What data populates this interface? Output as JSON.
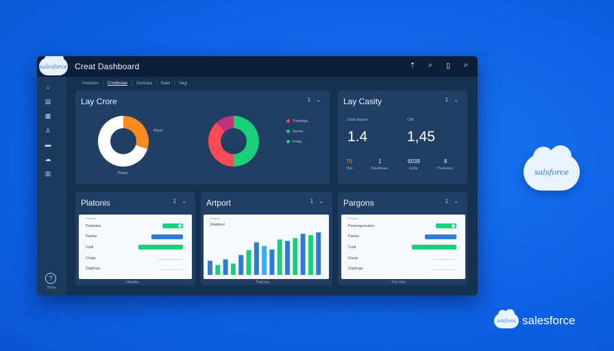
{
  "app": {
    "logo_text": "salesforce",
    "title": "Creat Dashboard"
  },
  "toolbar": {
    "icons": [
      "pin-icon",
      "search-icon",
      "bookmark-icon",
      "zoom-icon"
    ],
    "glyphs": [
      "⇡",
      "⌕",
      "▯",
      "⌕"
    ]
  },
  "sidebar": {
    "items": [
      {
        "icon": "home-icon",
        "glyph": "⌂"
      },
      {
        "icon": "grid-icon",
        "glyph": "▤"
      },
      {
        "icon": "calendar-icon",
        "glyph": "▦"
      },
      {
        "icon": "user-icon",
        "glyph": "♙"
      },
      {
        "icon": "folder-icon",
        "glyph": "▬"
      },
      {
        "icon": "cloud-icon",
        "glyph": "☁"
      },
      {
        "icon": "table-icon",
        "glyph": "▥"
      }
    ],
    "help_glyph": "?",
    "help_label": "Hoste"
  },
  "tabs": [
    "Hoestes",
    "Cnolboiae",
    "Gesoea",
    "Naw",
    "Vagi"
  ],
  "cards": {
    "lay_crore": {
      "title": "Lay Crore",
      "ctrl": "1 ⌄",
      "donut1_label": "Ptoot",
      "donut1_caption": "Prees",
      "legend": [
        {
          "label": "Tmorbqu",
          "color": "#ff4b55"
        },
        {
          "label": "Izoora",
          "color": "#18d07a"
        },
        {
          "label": "Feiay",
          "color": "#18d07a"
        }
      ]
    },
    "lay_casity": {
      "title": "Lay Casity",
      "ctrl": "1 ⌄",
      "col1_label": "Duals liqasse",
      "col2_label": "Clild",
      "value1": "1.4",
      "value2": "1,45",
      "stats": [
        {
          "value": "T6",
          "label": "Tlee"
        },
        {
          "value": "1",
          "label": "Rasdtnase"
        },
        {
          "value": "6039",
          "label": "Gcilie"
        },
        {
          "value": "8",
          "label": "Peesones"
        }
      ]
    },
    "platonis": {
      "title": "Platonis",
      "ctrl": "1 ⌄",
      "panel_header": "Portnion",
      "rows": [
        "Padnalos",
        "Paeha",
        "Cadl",
        "Crage",
        "Daplinye"
      ],
      "caption": "Hladdie"
    },
    "artport": {
      "title": "Artport",
      "ctrl": "1 ⌄",
      "panel_header": "Pbataal",
      "panel_sub": "Maqiteel",
      "caption": "Tlad tae"
    },
    "pargons": {
      "title": "Pargons",
      "ctrl": "1 ⌄",
      "panel_header": "Portnion",
      "rows": [
        "Partnogeesales",
        "Paeha",
        "Cadl",
        "Darge",
        "Daplinge"
      ],
      "caption": "Tlel rolle"
    }
  },
  "brand": {
    "cloud_text": "salsforce",
    "small_cloud_text": "salsforce",
    "text": "salesforce"
  },
  "colors": {
    "green": "#18d07a",
    "orange": "#ff8a1f",
    "red": "#ff4b55",
    "magenta": "#c0357a",
    "blue": "#2f7bd9",
    "light_blue": "#3fa8ff"
  },
  "chart_data": [
    {
      "type": "pie",
      "name": "donut-1",
      "values": [
        30,
        70
      ],
      "colors": [
        "#ff8a1f",
        "#ffffff"
      ]
    },
    {
      "type": "pie",
      "name": "donut-2",
      "values": [
        50,
        38,
        12
      ],
      "colors": [
        "#18d07a",
        "#ff4b55",
        "#c0357a"
      ]
    },
    {
      "type": "bar",
      "name": "artport-bars",
      "values": [
        20,
        14,
        22,
        16,
        28,
        35,
        46,
        41,
        36,
        50,
        48,
        52,
        58,
        56,
        60
      ],
      "colors": [
        "#2f7bd9",
        "#18d07a",
        "#2f7bd9",
        "#18d07a",
        "#2f7bd9",
        "#18d07a",
        "#2f7bd9",
        "#3fa8ff",
        "#2f7bd9",
        "#18d07a",
        "#2f7bd9",
        "#18d07a",
        "#2f7bd9",
        "#18d07a",
        "#2f7bd9"
      ],
      "ylim": [
        0,
        60
      ]
    },
    {
      "type": "bar",
      "name": "platonis-bars",
      "categories": [
        "Padnalos",
        "Paeha",
        "Cadl",
        "Crage",
        "Daplinye"
      ],
      "values": [
        0.45,
        0.7,
        0.98,
        0.55,
        0
      ],
      "colors": [
        "#18d07a",
        "#2f7bd9",
        "#18d07a",
        "#c9d3df",
        "#c9d3df"
      ]
    },
    {
      "type": "bar",
      "name": "pargons-bars",
      "categories": [
        "Partnogeesales",
        "Paeha",
        "Cadl",
        "Darge",
        "Daplinge"
      ],
      "values": [
        0.45,
        0.7,
        0.98,
        0.55,
        0
      ],
      "colors": [
        "#18d07a",
        "#2f7bd9",
        "#18d07a",
        "#c9d3df",
        "#c9d3df"
      ]
    }
  ]
}
